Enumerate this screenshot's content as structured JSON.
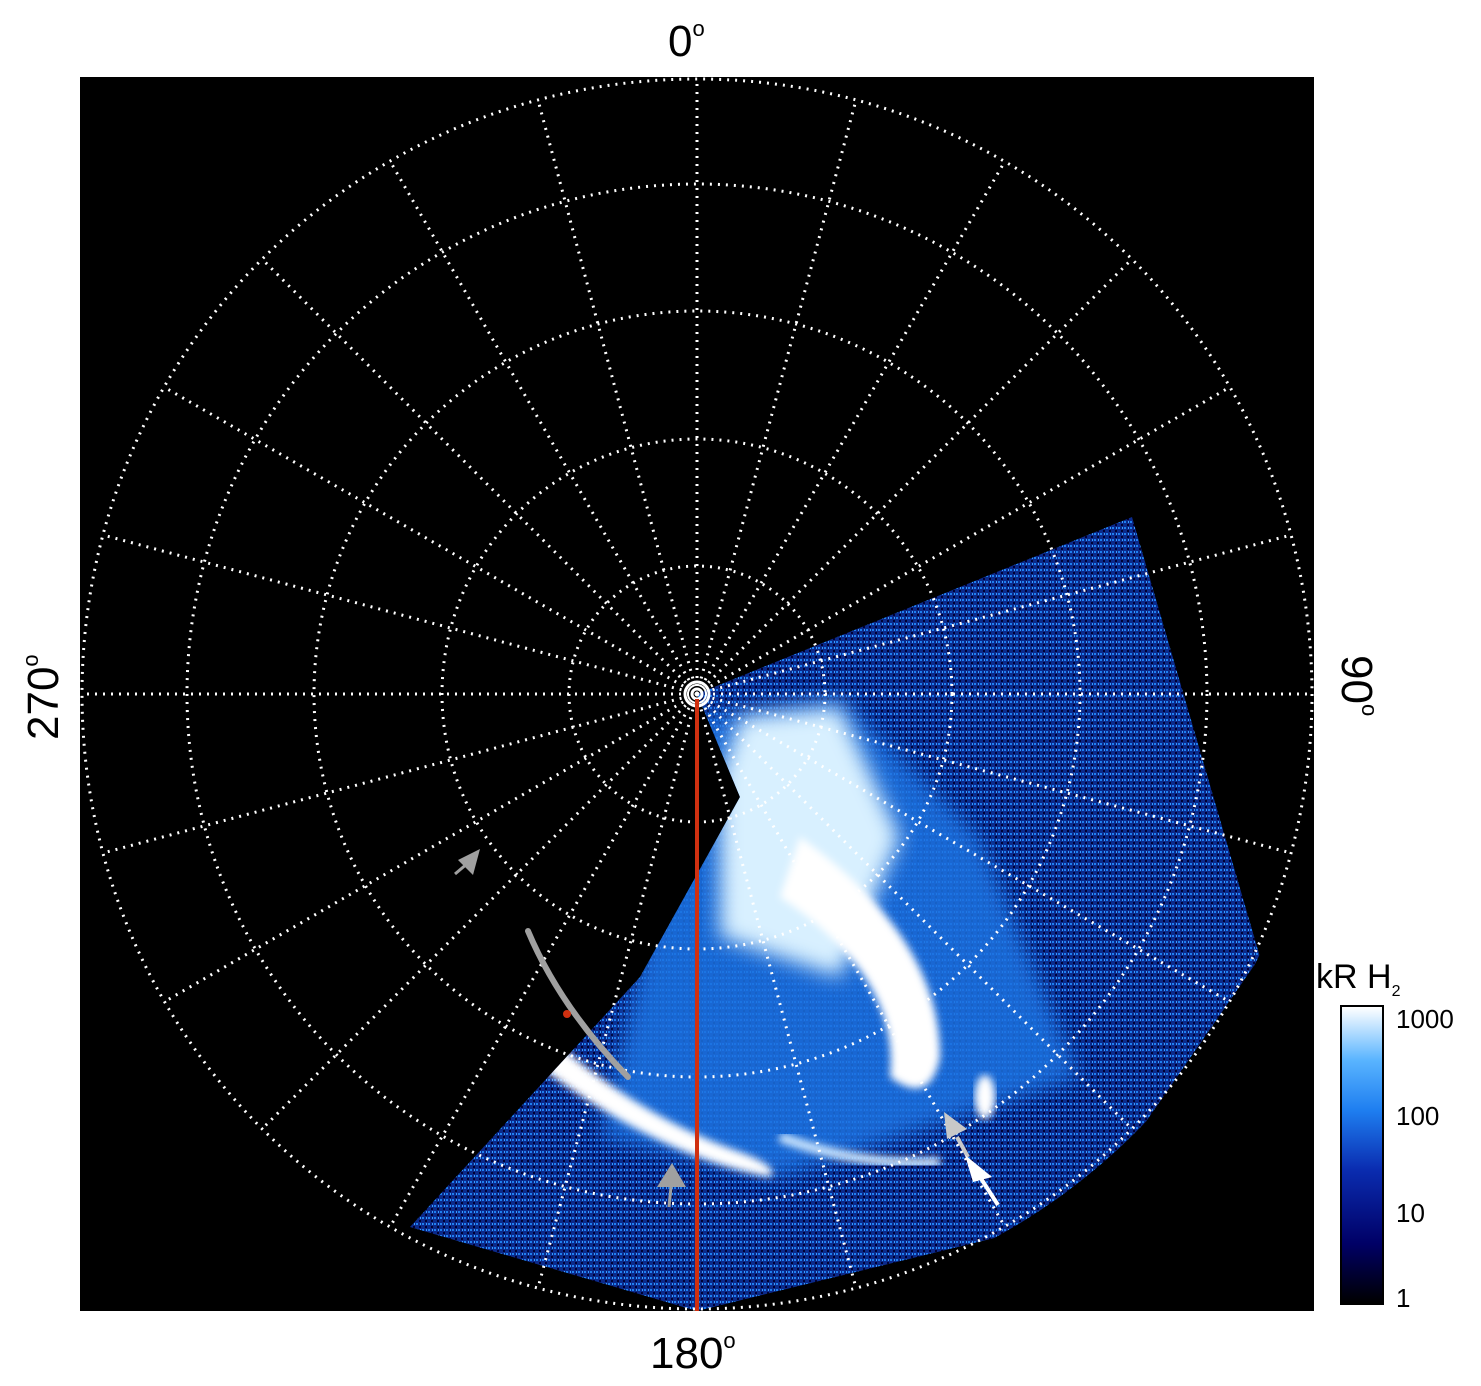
{
  "angle_labels": {
    "top": "0",
    "bottom": "180",
    "left": "270",
    "right": "90",
    "unit": "o"
  },
  "colorbar": {
    "title_main": "kR H",
    "title_sub": "2",
    "ticks": [
      "1000",
      "100",
      "10",
      "1"
    ],
    "scale": "log",
    "range": [
      1,
      1000
    ]
  },
  "colors": {
    "background": "#000000",
    "grid": "#ffffff",
    "emission_low": "#000066",
    "emission_mid": "#1e7ef0",
    "emission_high": "#ffffff",
    "meridian": "#d03010",
    "arrow_gray": "#a0a0a0"
  }
}
